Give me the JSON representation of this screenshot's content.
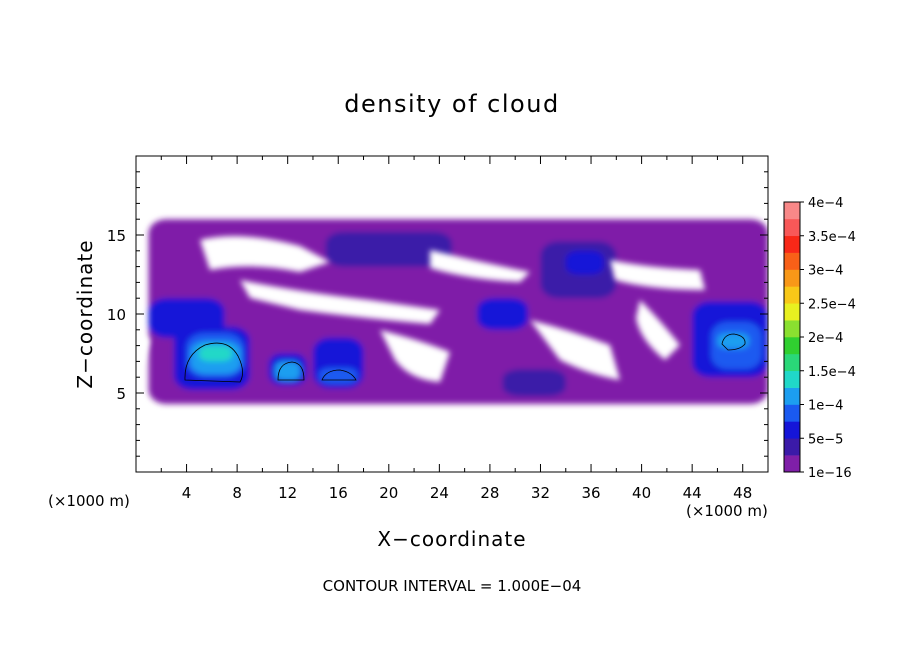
{
  "chart_data": {
    "type": "heatmap",
    "title": "density of cloud",
    "xlabel": "X−coordinate",
    "ylabel": "Z−coordinate",
    "x_unit_left": "(×1000 m)",
    "x_unit_right": "(×1000 m)",
    "footer": "CONTOUR INTERVAL = 1.000E−04",
    "xlim": [
      0,
      50
    ],
    "ylim": [
      0,
      20
    ],
    "xticks": [
      "4",
      "8",
      "12",
      "16",
      "20",
      "24",
      "28",
      "32",
      "36",
      "40",
      "44",
      "48"
    ],
    "yticks": [
      "5",
      "10",
      "15"
    ],
    "colorbar": {
      "labels": [
        "1e−16",
        "5e−5",
        "1e−4",
        "1.5e−4",
        "2e−4",
        "2.5e−4",
        "3e−4",
        "3.5e−4",
        "4e−4"
      ],
      "colors": [
        "#7f1fa8",
        "#3b1aa8",
        "#1515d8",
        "#1a5af0",
        "#1c9ef0",
        "#20d8c8",
        "#2ad878",
        "#30d030",
        "#8ae030",
        "#e8f020",
        "#f8c818",
        "#f89818",
        "#f86018",
        "#f82818",
        "#f85858",
        "#f88888"
      ]
    },
    "regions": [
      {
        "level": 1,
        "x": [
          1,
          50
        ],
        "z": [
          4.3,
          16
        ]
      },
      {
        "level": 2,
        "x": [
          15,
          25
        ],
        "z": [
          13,
          15.2
        ]
      },
      {
        "level": 2,
        "x": [
          32,
          38
        ],
        "z": [
          11,
          14.6
        ]
      },
      {
        "level": 3,
        "x": [
          34,
          37
        ],
        "z": [
          12.5,
          14
        ]
      },
      {
        "level": 3,
        "x": [
          1,
          7
        ],
        "z": [
          8.5,
          11
        ]
      },
      {
        "level": 3,
        "x": [
          3,
          9
        ],
        "z": [
          5.2,
          9.2
        ]
      },
      {
        "level": 4,
        "x": [
          4,
          8.5
        ],
        "z": [
          6,
          8.8
        ]
      },
      {
        "level": 5,
        "x": [
          4.3,
          8.3
        ],
        "z": [
          6.2,
          8.3
        ]
      },
      {
        "level": 6,
        "x": [
          5,
          7.6
        ],
        "z": [
          7,
          8
        ]
      },
      {
        "level": 3,
        "x": [
          10.5,
          13.5
        ],
        "z": [
          5.5,
          7.5
        ]
      },
      {
        "level": 5,
        "x": [
          11,
          13
        ],
        "z": [
          5.8,
          7
        ]
      },
      {
        "level": 3,
        "x": [
          14,
          18
        ],
        "z": [
          5.3,
          8.5
        ]
      },
      {
        "level": 4,
        "x": [
          14.5,
          17.5
        ],
        "z": [
          5.6,
          6.6
        ]
      },
      {
        "level": 3,
        "x": [
          27,
          31
        ],
        "z": [
          9,
          11
        ]
      },
      {
        "level": 2,
        "x": [
          29,
          34
        ],
        "z": [
          4.8,
          6.5
        ]
      },
      {
        "level": 3,
        "x": [
          44,
          50
        ],
        "z": [
          6,
          10.8
        ]
      },
      {
        "level": 4,
        "x": [
          45.5,
          49.5
        ],
        "z": [
          6.5,
          9.5
        ]
      },
      {
        "level": 5,
        "x": [
          46,
          48.5
        ],
        "z": [
          7.8,
          8.8
        ]
      }
    ]
  }
}
